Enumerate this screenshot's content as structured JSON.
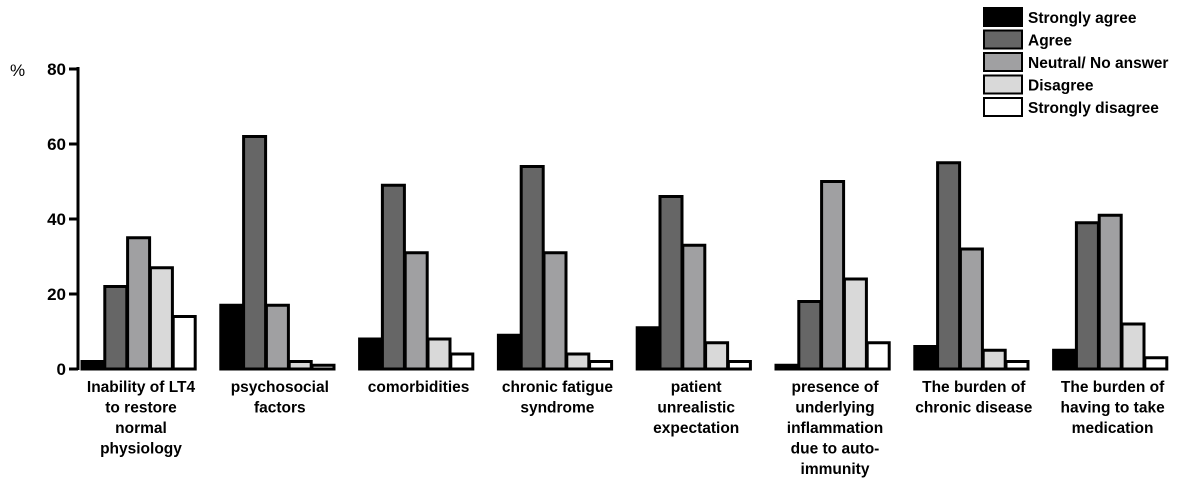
{
  "chart_data": {
    "type": "bar",
    "unit_label": "%",
    "ylim": [
      0,
      80
    ],
    "yticks": [
      "0",
      "20",
      "40",
      "60",
      "80"
    ],
    "categories": [
      [
        "Inability of LT4",
        "to restore",
        "normal",
        "physiology"
      ],
      [
        "psychosocial",
        "factors"
      ],
      [
        "comorbidities"
      ],
      [
        "chronic fatigue",
        "syndrome"
      ],
      [
        "patient",
        "unrealistic",
        "expectation"
      ],
      [
        "presence of",
        "underlying",
        "inflammation",
        "due to auto-",
        "immunity"
      ],
      [
        "The burden of",
        "chronic disease"
      ],
      [
        "The burden of",
        "having to take",
        "medication"
      ]
    ],
    "series": [
      {
        "name": "Strongly agree",
        "color": "#000000",
        "values": [
          2,
          17,
          8,
          9,
          11,
          1,
          6,
          5
        ]
      },
      {
        "name": "Agree",
        "color": "#666666",
        "values": [
          22,
          62,
          49,
          54,
          46,
          18,
          55,
          39
        ]
      },
      {
        "name": "Neutral/ No answer",
        "color": "#a0a0a2",
        "values": [
          35,
          17,
          31,
          31,
          33,
          50,
          32,
          41
        ]
      },
      {
        "name": "Disagree",
        "color": "#d9d9d9",
        "values": [
          27,
          2,
          8,
          4,
          7,
          24,
          5,
          12
        ]
      },
      {
        "name": "Strongly disagree",
        "color": "#ffffff",
        "values": [
          14,
          1,
          4,
          2,
          2,
          7,
          2,
          3
        ]
      }
    ],
    "legend_position": "top-right",
    "grid": false
  }
}
